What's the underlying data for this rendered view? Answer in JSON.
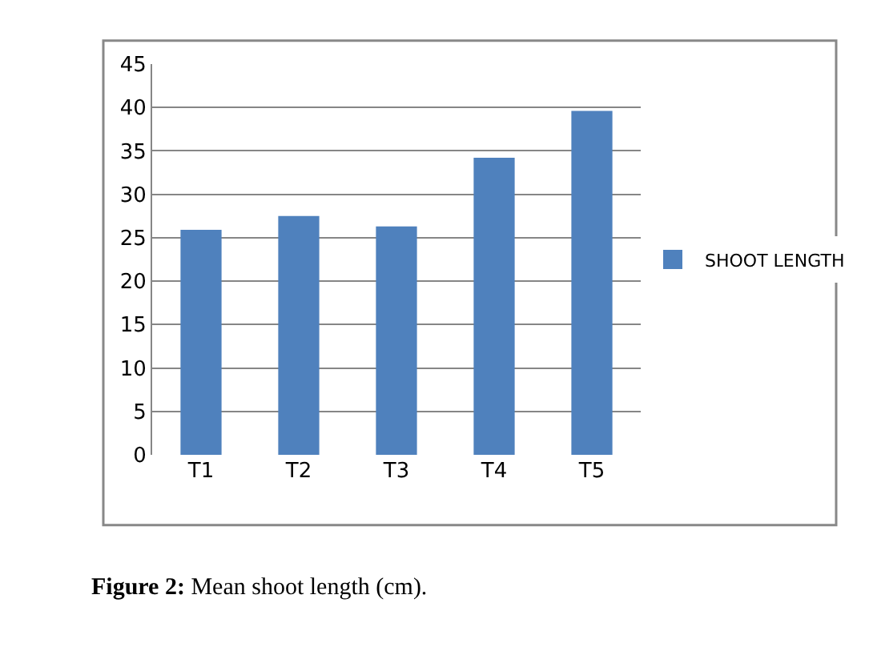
{
  "chart_data": {
    "type": "bar",
    "categories": [
      "T1",
      "T2",
      "T3",
      "T4",
      "T5"
    ],
    "series": [
      {
        "name": "SHOOT LENGTH",
        "color": "#4f81bd",
        "values": [
          25.9,
          27.5,
          26.3,
          34.2,
          39.6
        ]
      }
    ],
    "ylim": [
      0,
      45
    ],
    "yticks": [
      0,
      5,
      10,
      15,
      20,
      25,
      30,
      35,
      40,
      45
    ],
    "grid": "y",
    "legend": "right",
    "annotations": [
      "Figure 2: Mean shoot length (cm)."
    ]
  }
}
